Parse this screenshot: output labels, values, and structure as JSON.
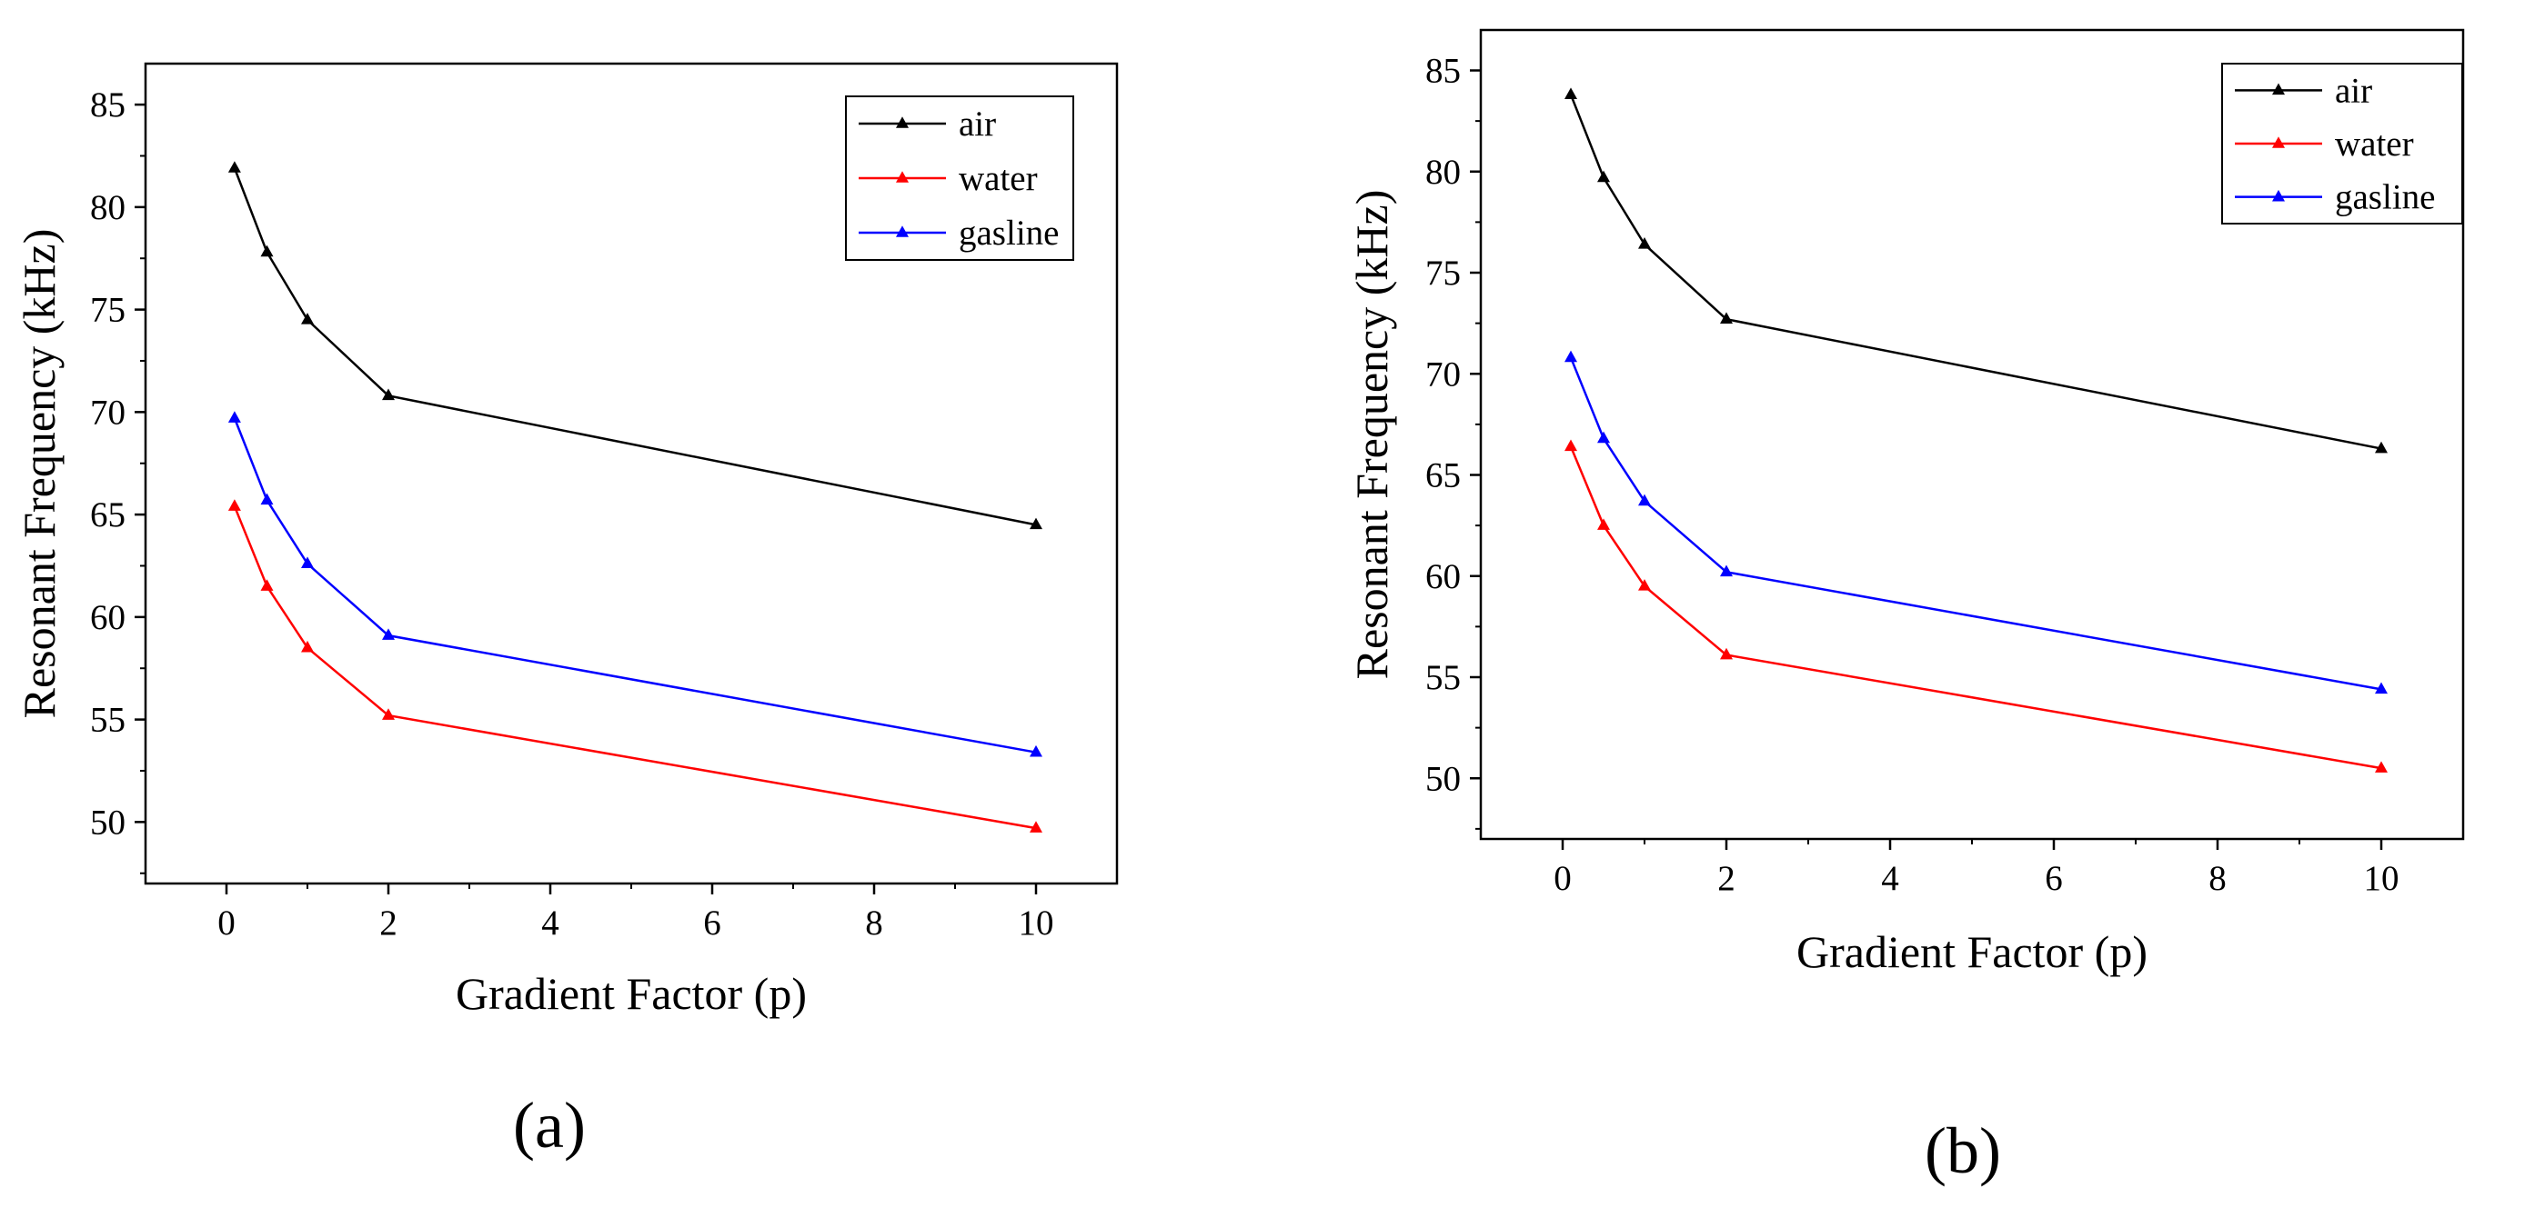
{
  "chart_data": [
    {
      "type": "line",
      "panel_label": "(a)",
      "xlabel": "Gradient Factor (p)",
      "ylabel": "Resonant Frequency (kHz)",
      "xlim": [
        -1,
        11
      ],
      "ylim": [
        47,
        87
      ],
      "xticks": [
        0,
        2,
        4,
        6,
        8,
        10
      ],
      "xtick_labels": [
        "0",
        "2",
        "4",
        "6",
        "8",
        "10"
      ],
      "yticks": [
        50,
        55,
        60,
        65,
        70,
        75,
        80,
        85
      ],
      "ytick_labels": [
        "50",
        "55",
        "60",
        "65",
        "70",
        "75",
        "80",
        "85"
      ],
      "x": [
        0.1,
        0.5,
        1,
        2,
        10
      ],
      "legend_position": "top-right",
      "series": [
        {
          "name": "air",
          "color": "#000000",
          "values": [
            81.9,
            77.8,
            74.5,
            70.8,
            64.5
          ]
        },
        {
          "name": "water",
          "color": "#ff0000",
          "values": [
            65.4,
            61.5,
            58.5,
            55.2,
            49.7
          ]
        },
        {
          "name": "gasline",
          "color": "#0000ff",
          "values": [
            69.7,
            65.7,
            62.6,
            59.1,
            53.4
          ]
        }
      ]
    },
    {
      "type": "line",
      "panel_label": "(b)",
      "xlabel": "Gradient Factor (p)",
      "ylabel": "Resonant Frequency (kHz)",
      "xlim": [
        -1,
        11
      ],
      "ylim": [
        47,
        87
      ],
      "xticks": [
        0,
        2,
        4,
        6,
        8,
        10
      ],
      "xtick_labels": [
        "0",
        "2",
        "4",
        "6",
        "8",
        "10"
      ],
      "yticks": [
        50,
        55,
        60,
        65,
        70,
        75,
        80,
        85
      ],
      "ytick_labels": [
        "50",
        "55",
        "60",
        "65",
        "70",
        "75",
        "80",
        "85"
      ],
      "x": [
        0.1,
        0.5,
        1,
        2,
        10
      ],
      "legend_position": "top-right",
      "series": [
        {
          "name": "air",
          "color": "#000000",
          "values": [
            83.8,
            79.7,
            76.4,
            72.7,
            66.3
          ]
        },
        {
          "name": "water",
          "color": "#ff0000",
          "values": [
            66.4,
            62.5,
            59.5,
            56.1,
            50.5
          ]
        },
        {
          "name": "gasline",
          "color": "#0000ff",
          "values": [
            70.8,
            66.8,
            63.7,
            60.2,
            54.4
          ]
        }
      ]
    }
  ]
}
